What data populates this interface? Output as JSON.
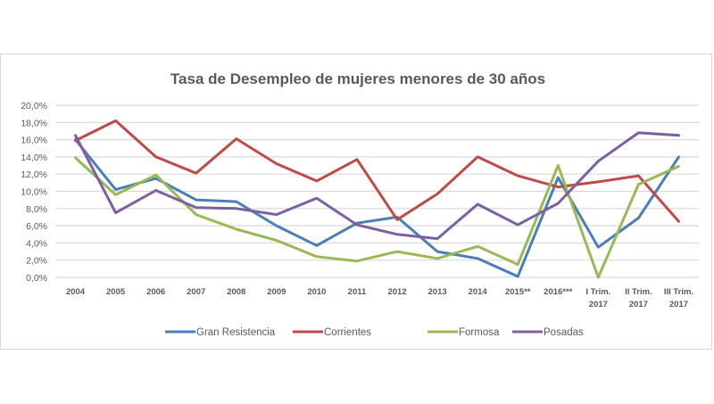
{
  "chart_data": {
    "type": "line",
    "title": "Tasa de Desempleo de mujeres menores de 30 años",
    "xlabel": "",
    "ylabel": "",
    "ylim": [
      0,
      20
    ],
    "yticks": [
      "0,0%",
      "2,0%",
      "4,0%",
      "6,0%",
      "8,0%",
      "10,0%",
      "12,0%",
      "14,0%",
      "16,0%",
      "18,0%",
      "20,0%"
    ],
    "grid": true,
    "legend_position": "bottom",
    "categories": [
      [
        "2004"
      ],
      [
        "2005"
      ],
      [
        "2006"
      ],
      [
        "2007"
      ],
      [
        "2008"
      ],
      [
        "2009"
      ],
      [
        "2010"
      ],
      [
        "2011"
      ],
      [
        "2012"
      ],
      [
        "2013"
      ],
      [
        "2014"
      ],
      [
        "2015**"
      ],
      [
        "2016***"
      ],
      [
        "I Trim.",
        "2017"
      ],
      [
        "II Trim.",
        "2017"
      ],
      [
        "III Trim.",
        "2017"
      ]
    ],
    "series": [
      {
        "name": "Gran Resistencia",
        "color": "#4a7ebb",
        "values": [
          16.0,
          10.2,
          11.5,
          9.0,
          8.8,
          6.0,
          3.7,
          6.3,
          7.0,
          3.0,
          2.2,
          0.1,
          11.6,
          3.5,
          6.9,
          14.0
        ]
      },
      {
        "name": "Corrientes",
        "color": "#be4b48",
        "values": [
          15.9,
          18.2,
          14.0,
          12.1,
          16.1,
          13.2,
          11.2,
          13.7,
          6.7,
          9.7,
          14.0,
          11.8,
          10.5,
          11.1,
          11.8,
          6.5
        ]
      },
      {
        "name": "Formosa",
        "color": "#98b954",
        "values": [
          13.9,
          9.6,
          11.9,
          7.3,
          5.6,
          4.3,
          2.4,
          1.9,
          3.0,
          2.2,
          3.6,
          1.5,
          13.0,
          0.0,
          10.8,
          12.9
        ]
      },
      {
        "name": "Posadas",
        "color": "#7d60a0",
        "values": [
          16.5,
          7.5,
          10.1,
          8.1,
          8.0,
          7.3,
          9.2,
          6.1,
          5.0,
          4.5,
          8.5,
          6.1,
          8.6,
          13.5,
          16.8,
          16.5
        ]
      }
    ]
  }
}
